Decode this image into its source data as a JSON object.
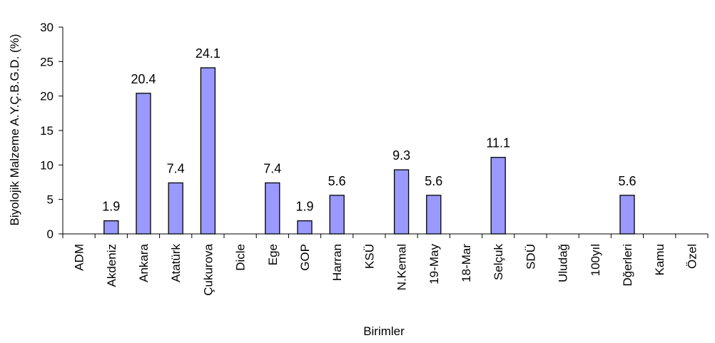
{
  "chart_data": {
    "type": "bar",
    "title": "",
    "xlabel": "Birimler",
    "ylabel": "Biyolojik Malzeme A.Y.Ç.B.G.D. (%)",
    "ylim": [
      0,
      30
    ],
    "yticks": [
      "0",
      "5",
      "10",
      "15",
      "20",
      "25",
      "30"
    ],
    "categories": [
      "ADM",
      "Akdeniz",
      "Ankara",
      "Atatürk",
      "Çukurova",
      "Dicle",
      "Ege",
      "GOP",
      "Harran",
      "KSÜ",
      "N.Kemal",
      "19-May",
      "18-Mar",
      "Selçuk",
      "SDÜ",
      "Uludağ",
      "100yıl",
      "Dğerleri",
      "Kamu",
      "Özel"
    ],
    "values": [
      0,
      1.9,
      20.4,
      7.4,
      24.1,
      0,
      7.4,
      1.9,
      5.6,
      0,
      9.3,
      5.6,
      0,
      11.1,
      0,
      0,
      0,
      5.6,
      0,
      0
    ],
    "data_labels": [
      "",
      "1.9",
      "20.4",
      "7.4",
      "24.1",
      "",
      "7.4",
      "1.9",
      "5.6",
      "",
      "9.3",
      "5.6",
      "",
      "11.1",
      "",
      "",
      "",
      "5.6",
      "",
      ""
    ],
    "grid": false,
    "legend": "none",
    "bar_color": "#9999FF",
    "bar_edge_color": "#000000"
  }
}
